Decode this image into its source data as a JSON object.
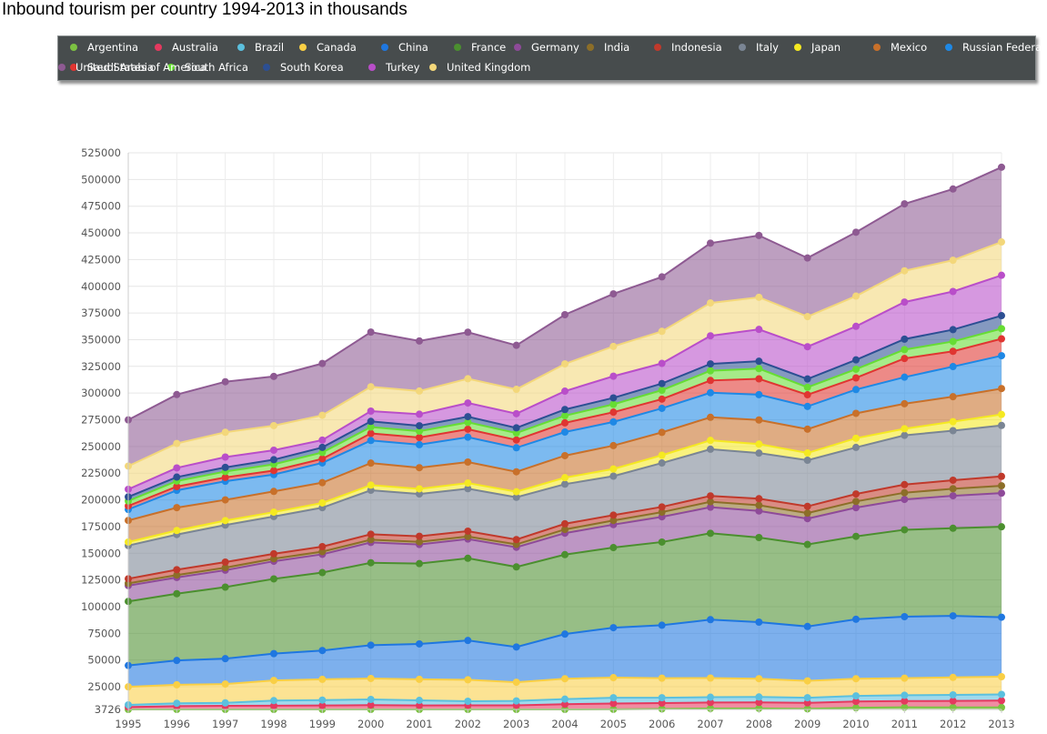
{
  "chart_data": {
    "type": "area",
    "stacked": true,
    "title": "Inbound tourism per country 1994-2013 in thousands",
    "xlabel": "",
    "ylabel": "",
    "x": [
      "1995",
      "1996",
      "1997",
      "1998",
      "1999",
      "2000",
      "2001",
      "2002",
      "2003",
      "2004",
      "2005",
      "2006",
      "2007",
      "2008",
      "2009",
      "2010",
      "2011",
      "2012",
      "2013"
    ],
    "ylim": [
      3726,
      525000
    ],
    "yticks": [
      3726,
      25000,
      50000,
      75000,
      100000,
      125000,
      150000,
      175000,
      200000,
      225000,
      250000,
      275000,
      300000,
      325000,
      350000,
      375000,
      400000,
      425000,
      450000,
      475000,
      500000,
      525000
    ],
    "ytick_labels": [
      "3726",
      "25000",
      "50000",
      "75000",
      "100000",
      "125000",
      "150000",
      "175000",
      "200000",
      "225000",
      "250000",
      "275000",
      "300000",
      "325000",
      "350000",
      "375000",
      "400000",
      "425000",
      "450000",
      "475000",
      "500000",
      "525000"
    ],
    "grid": true,
    "legend_position": "top",
    "series": [
      {
        "name": "Argentina",
        "color": "#7cc242",
        "values": [
          2300,
          2600,
          2800,
          3000,
          2900,
          2900,
          2600,
          2800,
          2900,
          3400,
          3800,
          4200,
          4600,
          4700,
          4300,
          5300,
          5700,
          5600,
          5600
        ]
      },
      {
        "name": "Australia",
        "color": "#e5395f",
        "values": [
          3700,
          4200,
          4300,
          4200,
          4500,
          4900,
          4800,
          4800,
          4700,
          5200,
          5500,
          5500,
          5600,
          5600,
          5600,
          5900,
          5900,
          6100,
          6400
        ]
      },
      {
        "name": "Brazil",
        "color": "#5bc0de",
        "values": [
          2000,
          2700,
          2800,
          4800,
          5100,
          5300,
          4800,
          3800,
          4100,
          4800,
          5400,
          5000,
          5000,
          5100,
          4800,
          5200,
          5400,
          5700,
          5800
        ]
      },
      {
        "name": "Canada",
        "color": "#f9cf45",
        "values": [
          16900,
          17300,
          17600,
          18900,
          19400,
          19600,
          19700,
          20100,
          17500,
          19100,
          18800,
          18300,
          17900,
          17100,
          15800,
          16100,
          16000,
          16300,
          16600
        ]
      },
      {
        "name": "China",
        "color": "#1f77e0",
        "values": [
          20000,
          22800,
          23800,
          25100,
          27000,
          31200,
          33200,
          36800,
          33000,
          41800,
          46800,
          49600,
          54700,
          53000,
          50900,
          55700,
          57600,
          57700,
          55700
        ]
      },
      {
        "name": "France",
        "color": "#4b8f2f",
        "values": [
          60000,
          62500,
          67000,
          70000,
          73000,
          77200,
          75200,
          77000,
          75000,
          74400,
          75000,
          77900,
          80900,
          79200,
          76800,
          77600,
          81400,
          82000,
          84700
        ]
      },
      {
        "name": "Germany",
        "color": "#8e4a99",
        "values": [
          14800,
          15200,
          15800,
          16500,
          17100,
          19000,
          17900,
          18000,
          18400,
          20100,
          21500,
          23600,
          24400,
          24900,
          24200,
          26900,
          28400,
          30400,
          31500
        ]
      },
      {
        "name": "India",
        "color": "#8c6e28",
        "values": [
          2100,
          2300,
          2400,
          2400,
          2500,
          2600,
          2500,
          2400,
          2700,
          3500,
          3900,
          4400,
          5100,
          5300,
          5200,
          5800,
          6300,
          6600,
          6900
        ]
      },
      {
        "name": "Indonesia",
        "color": "#c0392b",
        "values": [
          4300,
          5000,
          5200,
          4600,
          4700,
          5100,
          5200,
          5000,
          4500,
          5300,
          5000,
          4900,
          5500,
          6200,
          6300,
          7000,
          7600,
          8000,
          8800
        ]
      },
      {
        "name": "Italy",
        "color": "#7a8594",
        "values": [
          31100,
          32900,
          34700,
          34900,
          36500,
          41200,
          39600,
          39800,
          39600,
          37100,
          36500,
          41100,
          43700,
          42700,
          43200,
          43600,
          46100,
          46400,
          47700
        ]
      },
      {
        "name": "Japan",
        "color": "#f5e921",
        "values": [
          3300,
          3800,
          4200,
          4100,
          4400,
          4800,
          4800,
          5200,
          5200,
          6100,
          6700,
          7300,
          8300,
          8400,
          6800,
          8600,
          6200,
          8400,
          10300
        ]
      },
      {
        "name": "Mexico",
        "color": "#c8702a",
        "values": [
          20200,
          21400,
          19400,
          19400,
          19000,
          20600,
          19800,
          19700,
          18700,
          20600,
          21900,
          21400,
          21600,
          22600,
          22300,
          23300,
          23400,
          23400,
          24200
        ]
      },
      {
        "name": "Russian Federation",
        "color": "#1e88e5",
        "values": [
          10300,
          16200,
          17400,
          15800,
          18500,
          21200,
          21600,
          23300,
          22500,
          22100,
          22200,
          22500,
          23000,
          23700,
          21300,
          22300,
          24900,
          28200,
          30800
        ]
      },
      {
        "name": "Saudi Arabia",
        "color": "#e03531",
        "values": [
          3300,
          3500,
          3600,
          3700,
          3800,
          6600,
          6700,
          7500,
          7300,
          8600,
          9100,
          8600,
          11500,
          14800,
          10900,
          10900,
          17500,
          14300,
          15800
        ]
      },
      {
        "name": "South Africa",
        "color": "#66dd33",
        "values": [
          4700,
          5200,
          5500,
          5900,
          6000,
          6000,
          5900,
          6400,
          6500,
          6700,
          7400,
          8400,
          9100,
          9600,
          7000,
          8100,
          8300,
          9200,
          9500
        ]
      },
      {
        "name": "South Korea",
        "color": "#2c4f93",
        "values": [
          3800,
          3700,
          3900,
          4300,
          4700,
          5300,
          5100,
          5300,
          4800,
          5800,
          6000,
          6200,
          6400,
          6900,
          7800,
          8800,
          9800,
          11100,
          12200
        ]
      },
      {
        "name": "Turkey",
        "color": "#b94ec9",
        "values": [
          7100,
          8600,
          9700,
          8900,
          6900,
          9600,
          10800,
          12800,
          13300,
          17200,
          20300,
          18900,
          26300,
          29800,
          30200,
          31400,
          34700,
          35700,
          37800
        ]
      },
      {
        "name": "United Kingdom",
        "color": "#f3d77a",
        "values": [
          21700,
          22900,
          23200,
          23000,
          23200,
          22800,
          21700,
          22700,
          22800,
          25500,
          27900,
          30000,
          30800,
          30100,
          28200,
          28300,
          29300,
          29300,
          31200
        ]
      },
      {
        "name": "United States of America",
        "color": "#8e5a92",
        "values": [
          43300,
          45800,
          47300,
          46100,
          48500,
          51200,
          46900,
          43600,
          41200,
          46100,
          49200,
          51000,
          56000,
          57900,
          54900,
          59800,
          62700,
          66700,
          70000
        ]
      }
    ]
  }
}
